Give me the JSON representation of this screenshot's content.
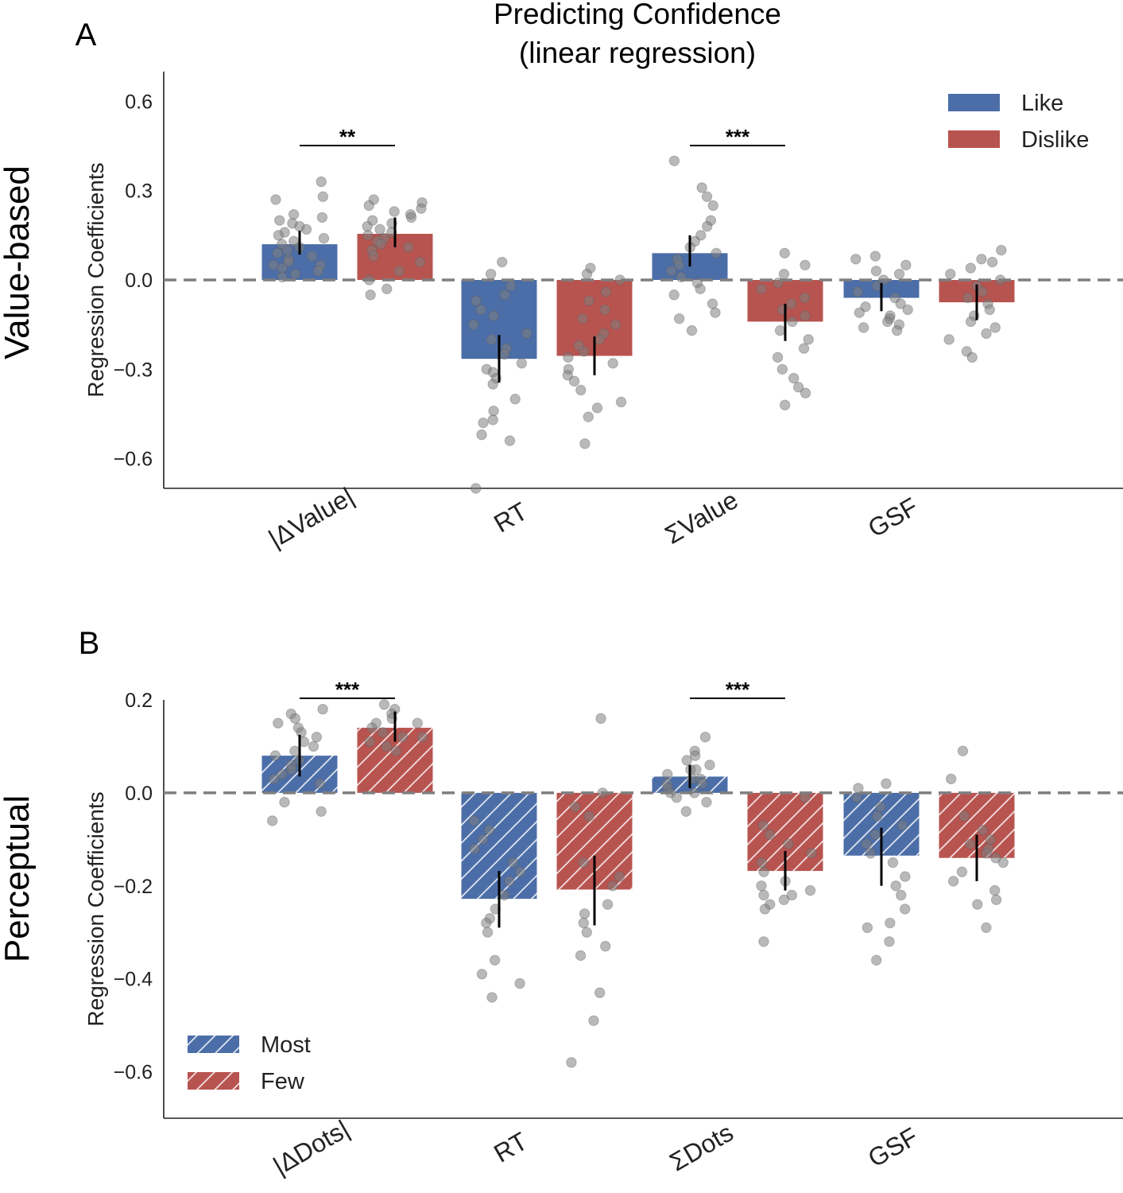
{
  "figure_title": "Predicting Confidence",
  "figure_subtitle": "(linear regression)",
  "colors": {
    "blue": "#4c6ea8",
    "red": "#b85450",
    "dot": "#808080",
    "dashed": "#7f7f7f"
  },
  "chart_data": [
    {
      "type": "bar",
      "panel_label": "A",
      "row_label": "Value-based",
      "ylabel": "Regression Coefficients",
      "ylim": [
        -0.7,
        0.7
      ],
      "yticks": [
        -0.6,
        -0.3,
        0.0,
        0.3,
        0.6
      ],
      "ytick_labels": [
        "−0.6",
        "−0.3",
        "0.0",
        "0.3",
        "0.6"
      ],
      "categories": [
        "|ΔValue|",
        "RT",
        "ΣValue",
        "GSF"
      ],
      "legend_position": "top-right",
      "hatched": false,
      "series": [
        {
          "name": "Like",
          "color": "#4c6ea8",
          "values": [
            0.12,
            -0.265,
            0.09,
            -0.06
          ],
          "err_low": [
            0.085,
            -0.345,
            0.045,
            -0.105
          ],
          "err_high": [
            0.165,
            -0.185,
            0.15,
            -0.01
          ],
          "points": [
            [
              0.33,
              0.28,
              0.27,
              0.22,
              0.21,
              0.2,
              0.19,
              0.18,
              0.17,
              0.16,
              0.15,
              0.14,
              0.13,
              0.12,
              0.11,
              0.1,
              0.09,
              0.08,
              0.07,
              0.06,
              0.05,
              0.05,
              0.04,
              0.03,
              0.02,
              0.01
            ],
            [
              0.06,
              0.02,
              -0.02,
              -0.05,
              -0.07,
              -0.1,
              -0.12,
              -0.15,
              -0.18,
              -0.2,
              -0.23,
              -0.25,
              -0.28,
              -0.3,
              -0.31,
              -0.33,
              -0.35,
              -0.4,
              -0.44,
              -0.47,
              -0.48,
              -0.52,
              -0.54,
              -0.7
            ],
            [
              0.4,
              0.31,
              0.28,
              0.25,
              0.2,
              0.18,
              0.15,
              0.13,
              0.11,
              0.09,
              0.07,
              0.05,
              0.03,
              0.01,
              -0.01,
              -0.03,
              -0.05,
              -0.08,
              -0.11,
              -0.13,
              -0.17
            ],
            [
              0.08,
              0.07,
              0.05,
              0.03,
              0.02,
              0.0,
              -0.02,
              -0.04,
              -0.06,
              -0.08,
              -0.09,
              -0.1,
              -0.11,
              -0.12,
              -0.13,
              -0.14,
              -0.15,
              -0.16,
              -0.17
            ]
          ]
        },
        {
          "name": "Dislike",
          "color": "#b85450",
          "values": [
            0.155,
            -0.255,
            -0.14,
            -0.075
          ],
          "err_low": [
            0.11,
            -0.32,
            -0.205,
            -0.135
          ],
          "err_high": [
            0.21,
            -0.19,
            -0.08,
            -0.015
          ],
          "points": [
            [
              0.27,
              0.26,
              0.25,
              0.24,
              0.23,
              0.22,
              0.21,
              0.2,
              0.19,
              0.18,
              0.17,
              0.16,
              0.15,
              0.14,
              0.13,
              0.12,
              0.11,
              0.1,
              0.08,
              0.06,
              0.03,
              0.0,
              -0.03,
              -0.05
            ],
            [
              0.04,
              0.02,
              0.0,
              -0.04,
              -0.07,
              -0.1,
              -0.13,
              -0.15,
              -0.18,
              -0.2,
              -0.22,
              -0.24,
              -0.26,
              -0.28,
              -0.3,
              -0.32,
              -0.34,
              -0.37,
              -0.41,
              -0.43,
              -0.46,
              -0.55
            ],
            [
              0.09,
              0.05,
              0.02,
              -0.01,
              -0.03,
              -0.06,
              -0.08,
              -0.1,
              -0.12,
              -0.14,
              -0.17,
              -0.2,
              -0.23,
              -0.26,
              -0.3,
              -0.33,
              -0.36,
              -0.38,
              -0.42
            ],
            [
              0.1,
              0.07,
              0.06,
              0.04,
              0.02,
              0.0,
              -0.02,
              -0.04,
              -0.06,
              -0.08,
              -0.1,
              -0.12,
              -0.14,
              -0.16,
              -0.18,
              -0.2,
              -0.24,
              -0.26
            ]
          ]
        }
      ],
      "significance": [
        {
          "category_index": 0,
          "label": "**"
        },
        {
          "category_index": 2,
          "label": "***"
        }
      ]
    },
    {
      "type": "bar",
      "panel_label": "B",
      "row_label": "Perceptual",
      "ylabel": "Regression Coefficients",
      "ylim": [
        -0.7,
        0.2
      ],
      "yticks": [
        -0.6,
        -0.4,
        -0.2,
        0.0,
        0.2
      ],
      "ytick_labels": [
        "−0.6",
        "−0.4",
        "−0.2",
        "0.0",
        "0.2"
      ],
      "categories": [
        "|ΔDots|",
        "RT",
        "ΣDots",
        "GSF"
      ],
      "legend_position": "bottom-left",
      "hatched": true,
      "series": [
        {
          "name": "Most",
          "color": "#4c6ea8",
          "values": [
            0.08,
            -0.228,
            0.035,
            -0.135
          ],
          "err_low": [
            0.035,
            -0.29,
            0.01,
            -0.2
          ],
          "err_high": [
            0.125,
            -0.168,
            0.06,
            -0.075
          ],
          "points": [
            [
              0.18,
              0.17,
              0.16,
              0.15,
              0.14,
              0.13,
              0.12,
              0.11,
              0.1,
              0.09,
              0.08,
              0.07,
              0.06,
              0.05,
              0.04,
              0.03,
              0.02,
              -0.02,
              -0.04,
              -0.06
            ],
            [
              -0.06,
              -0.08,
              -0.1,
              -0.12,
              -0.15,
              -0.17,
              -0.19,
              -0.22,
              -0.25,
              -0.27,
              -0.28,
              -0.3,
              -0.36,
              -0.39,
              -0.41,
              -0.44
            ],
            [
              0.12,
              0.09,
              0.08,
              0.07,
              0.06,
              0.05,
              0.05,
              0.04,
              0.03,
              0.03,
              0.02,
              0.02,
              0.01,
              0.0,
              0.0,
              -0.01,
              -0.02,
              -0.04
            ],
            [
              0.02,
              0.01,
              -0.01,
              -0.03,
              -0.05,
              -0.07,
              -0.09,
              -0.11,
              -0.13,
              -0.15,
              -0.18,
              -0.2,
              -0.22,
              -0.25,
              -0.28,
              -0.29,
              -0.32,
              -0.36
            ]
          ]
        },
        {
          "name": "Few",
          "color": "#b85450",
          "values": [
            0.14,
            -0.208,
            -0.168,
            -0.14
          ],
          "err_low": [
            0.11,
            -0.285,
            -0.21,
            -0.19
          ],
          "err_high": [
            0.175,
            -0.135,
            -0.125,
            -0.09
          ],
          "points": [
            [
              0.19,
              0.18,
              0.17,
              0.16,
              0.15,
              0.15,
              0.14,
              0.13,
              0.12,
              0.12,
              0.11,
              0.1,
              0.09
            ],
            [
              0.16,
              0.0,
              -0.03,
              -0.05,
              -0.15,
              -0.18,
              -0.2,
              -0.24,
              -0.26,
              -0.28,
              -0.3,
              -0.33,
              -0.35,
              -0.43,
              -0.49,
              -0.58
            ],
            [
              -0.01,
              -0.07,
              -0.09,
              -0.11,
              -0.13,
              -0.15,
              -0.17,
              -0.19,
              -0.2,
              -0.21,
              -0.22,
              -0.22,
              -0.23,
              -0.24,
              -0.25,
              -0.32
            ],
            [
              0.09,
              0.03,
              -0.05,
              -0.08,
              -0.1,
              -0.11,
              -0.12,
              -0.13,
              -0.14,
              -0.15,
              -0.17,
              -0.19,
              -0.21,
              -0.23,
              -0.24,
              -0.29
            ]
          ]
        }
      ],
      "significance": [
        {
          "category_index": 0,
          "label": "***"
        },
        {
          "category_index": 2,
          "label": "***"
        }
      ]
    }
  ]
}
